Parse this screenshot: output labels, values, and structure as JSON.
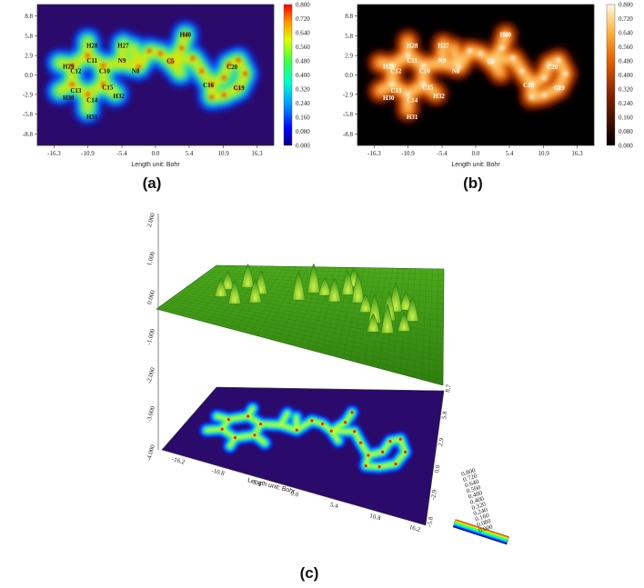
{
  "chart_data": [
    {
      "panel_label": "(a)",
      "type": "heatmap",
      "colormap": "rainbow",
      "xlabel": "Length unit: Bohr",
      "x_ticks": [
        "-16.3",
        "-10.9",
        "-5.4",
        "0.0",
        "5.4",
        "10.9",
        "16.3"
      ],
      "y_ticks": [
        "8.8",
        "5.8",
        "2.9",
        "0.0",
        "-2.9",
        "-5.8",
        "-8.8"
      ],
      "colorbar_ticks": [
        "0.800",
        "0.720",
        "0.640",
        "0.560",
        "0.480",
        "0.400",
        "0.320",
        "0.240",
        "0.160",
        "0.080",
        "0.000"
      ],
      "zlim": [
        0.0,
        0.8
      ],
      "atom_labels": [
        {
          "text": "H28",
          "x": -10.2,
          "y": 4.4
        },
        {
          "text": "H27",
          "x": -5.2,
          "y": 4.4
        },
        {
          "text": "H29",
          "x": -14.0,
          "y": 1.3
        },
        {
          "text": "C11",
          "x": -10.2,
          "y": 2.2
        },
        {
          "text": "N9",
          "x": -5.4,
          "y": 2.2
        },
        {
          "text": "C12",
          "x": -12.8,
          "y": 0.6
        },
        {
          "text": "C10",
          "x": -8.2,
          "y": 0.6
        },
        {
          "text": "N8",
          "x": -3.2,
          "y": 0.6
        },
        {
          "text": "C13",
          "x": -12.8,
          "y": -2.3
        },
        {
          "text": "C15",
          "x": -7.7,
          "y": -1.8
        },
        {
          "text": "H32",
          "x": -5.9,
          "y": -3.1
        },
        {
          "text": "H30",
          "x": -14.0,
          "y": -3.4
        },
        {
          "text": "C14",
          "x": -10.2,
          "y": -3.7
        },
        {
          "text": "H31",
          "x": -10.2,
          "y": -6.2
        },
        {
          "text": "H40",
          "x": 4.8,
          "y": 6.0
        },
        {
          "text": "C5",
          "x": 2.4,
          "y": 2.1
        },
        {
          "text": "C20",
          "x": 12.3,
          "y": 1.2
        },
        {
          "text": "C16",
          "x": 8.5,
          "y": -1.5
        },
        {
          "text": "C19",
          "x": 13.4,
          "y": -1.9
        }
      ]
    },
    {
      "panel_label": "(b)",
      "type": "heatmap",
      "colormap": "afmhot",
      "xlabel": "Length unit: Bohr",
      "x_ticks": [
        "-16.3",
        "-10.9",
        "-5.4",
        "0.0",
        "5.4",
        "10.9",
        "16.3"
      ],
      "y_ticks": [
        "8.8",
        "5.8",
        "2.9",
        "0.0",
        "-2.9",
        "-5.8",
        "-8.8"
      ],
      "colorbar_ticks": [
        "0.800",
        "0.720",
        "0.640",
        "0.560",
        "0.480",
        "0.400",
        "0.320",
        "0.240",
        "0.160",
        "0.080",
        "0.000"
      ],
      "zlim": [
        0.0,
        0.8
      ],
      "atom_labels": [
        {
          "text": "H28",
          "x": -10.2,
          "y": 4.4
        },
        {
          "text": "H27",
          "x": -5.2,
          "y": 4.4
        },
        {
          "text": "H29",
          "x": -14.0,
          "y": 1.3
        },
        {
          "text": "C11",
          "x": -10.2,
          "y": 2.2
        },
        {
          "text": "N9",
          "x": -5.4,
          "y": 2.2
        },
        {
          "text": "C12",
          "x": -12.8,
          "y": 0.6
        },
        {
          "text": "C10",
          "x": -8.2,
          "y": 0.6
        },
        {
          "text": "N8",
          "x": -3.2,
          "y": 0.6
        },
        {
          "text": "C13",
          "x": -12.8,
          "y": -2.3
        },
        {
          "text": "C15",
          "x": -7.7,
          "y": -1.8
        },
        {
          "text": "H32",
          "x": -5.9,
          "y": -3.1
        },
        {
          "text": "H30",
          "x": -14.0,
          "y": -3.4
        },
        {
          "text": "C14",
          "x": -10.2,
          "y": -3.7
        },
        {
          "text": "H31",
          "x": -10.2,
          "y": -6.2
        },
        {
          "text": "H40",
          "x": 4.8,
          "y": 6.0
        },
        {
          "text": "C5",
          "x": 2.4,
          "y": 2.1
        },
        {
          "text": "C20",
          "x": 12.3,
          "y": 1.2
        },
        {
          "text": "C16",
          "x": 8.5,
          "y": -1.5
        },
        {
          "text": "C19",
          "x": 13.4,
          "y": -1.9
        }
      ]
    },
    {
      "panel_label": "(c)",
      "type": "surface",
      "xlabel": "Length unit: Bohr",
      "x_ticks": [
        "-16.2",
        "-10.8",
        "-5.4",
        "0.0",
        "5.4",
        "10.8",
        "16.2"
      ],
      "y_ticks": [
        "-5.8",
        "-2.9",
        "0.0",
        "2.9",
        "5.8",
        "8.7"
      ],
      "z_ticks": [
        "2.000",
        "1.000",
        "0.000",
        "-1.000",
        "-2.000",
        "-3.000",
        "-4.000"
      ],
      "zlim": [
        -4.0,
        2.0
      ],
      "colorbar_ticks": [
        "0.800",
        "0.720",
        "0.640",
        "0.560",
        "0.480",
        "0.400",
        "0.320",
        "0.240",
        "0.160",
        "0.080",
        "0.000"
      ]
    }
  ]
}
